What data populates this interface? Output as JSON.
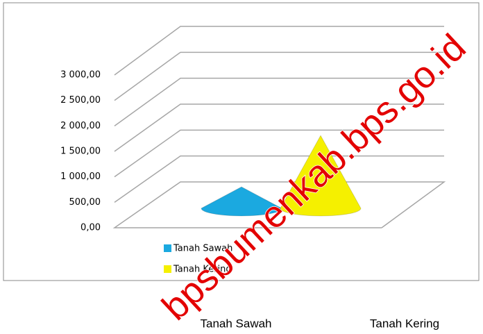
{
  "chart_data": {
    "type": "cone",
    "categories": [
      "Tanah Sawah",
      "Tanah Kering"
    ],
    "series": [
      {
        "name": "Tanah Sawah",
        "color": "#1ba9e0",
        "values": [
          350,
          null
        ]
      },
      {
        "name": "Tanah Kering",
        "color": "#f5f000",
        "values": [
          null,
          1350
        ]
      }
    ],
    "ylim": [
      0,
      3000
    ],
    "yticks": [
      {
        "value": 0,
        "label": "0,00"
      },
      {
        "value": 500,
        "label": "500,00"
      },
      {
        "value": 1000,
        "label": "1 000,00"
      },
      {
        "value": 1500,
        "label": "1 500,00"
      },
      {
        "value": 2000,
        "label": "2 000,00"
      },
      {
        "value": 2500,
        "label": "2 500,00"
      },
      {
        "value": 3000,
        "label": "3 000,00"
      }
    ],
    "grid": true
  },
  "watermark": "bpsbumenkab.bps.go.id"
}
